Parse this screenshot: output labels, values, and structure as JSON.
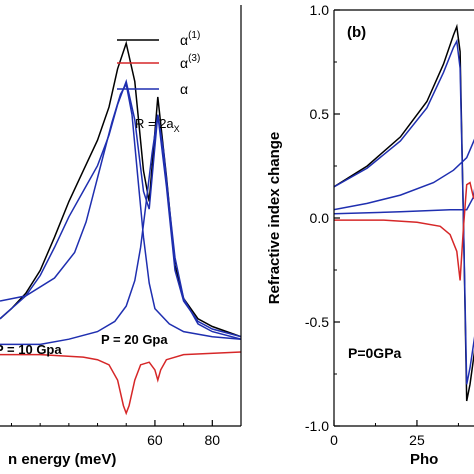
{
  "chart_data": [
    {
      "panel": "a",
      "type": "line",
      "xlabel": "n energy (meV)",
      "ylabel": "",
      "xlim": [
        6,
        90
      ],
      "ylim": [
        -0.3,
        1.35
      ],
      "xticks": [
        60,
        80
      ],
      "yticks": [],
      "grid": false,
      "legend_position": "top-right",
      "legend": [
        {
          "label": "α",
          "sup": "(1)",
          "color": "#000000"
        },
        {
          "label": "α",
          "sup": "(3)",
          "color": "#d62728"
        },
        {
          "label": "α",
          "sup": "",
          "color": "#1f2fb0"
        }
      ],
      "annotations": [
        {
          "text": "R = 2a",
          "sub": "X",
          "x": 72,
          "y": 0.92
        },
        {
          "text": "P = 20 Gpa",
          "x": 63,
          "y": -0.16
        },
        {
          "text": "P = 10 Gpa",
          "x": 5,
          "y": -0.26
        }
      ],
      "series": [
        {
          "color": "#000000",
          "values": [
            [
              6,
              0.12
            ],
            [
              10,
              0.16
            ],
            [
              15,
              0.22
            ],
            [
              20,
              0.31
            ],
            [
              25,
              0.44
            ],
            [
              30,
              0.58
            ],
            [
              35,
              0.7
            ],
            [
              40,
              0.82
            ],
            [
              44,
              0.95
            ],
            [
              47,
              1.1
            ],
            [
              50,
              1.2
            ],
            [
              53,
              1.05
            ],
            [
              56,
              0.7
            ],
            [
              58,
              0.58
            ],
            [
              61,
              0.99
            ],
            [
              64,
              0.68
            ],
            [
              67,
              0.33
            ],
            [
              70,
              0.2
            ],
            [
              75,
              0.12
            ],
            [
              80,
              0.09
            ],
            [
              90,
              0.05
            ]
          ]
        },
        {
          "color": "#1f2fb0",
          "values": [
            [
              6,
              0.12
            ],
            [
              10,
              0.16
            ],
            [
              15,
              0.21
            ],
            [
              20,
              0.29
            ],
            [
              25,
              0.4
            ],
            [
              30,
              0.52
            ],
            [
              35,
              0.62
            ],
            [
              40,
              0.72
            ],
            [
              44,
              0.84
            ],
            [
              47,
              0.96
            ],
            [
              50,
              1.05
            ],
            [
              53,
              0.9
            ],
            [
              56,
              0.62
            ],
            [
              58,
              0.55
            ],
            [
              61,
              0.92
            ],
            [
              64,
              0.64
            ],
            [
              67,
              0.31
            ],
            [
              70,
              0.19
            ],
            [
              75,
              0.11
            ],
            [
              80,
              0.08
            ],
            [
              90,
              0.05
            ]
          ]
        },
        {
          "color": "#1f2fb0",
          "values": [
            [
              6,
              0.19
            ],
            [
              15,
              0.21
            ],
            [
              25,
              0.28
            ],
            [
              32,
              0.38
            ],
            [
              36,
              0.5
            ],
            [
              39,
              0.63
            ],
            [
              42,
              0.76
            ],
            [
              45,
              0.89
            ],
            [
              48,
              1.0
            ],
            [
              50,
              1.04
            ],
            [
              52,
              0.92
            ],
            [
              54,
              0.68
            ],
            [
              56,
              0.44
            ],
            [
              58,
              0.26
            ],
            [
              60,
              0.16
            ],
            [
              65,
              0.1
            ],
            [
              70,
              0.07
            ],
            [
              80,
              0.05
            ],
            [
              90,
              0.04
            ]
          ]
        },
        {
          "color": "#1f2fb0",
          "values": [
            [
              6,
              0.02
            ],
            [
              20,
              0.02
            ],
            [
              30,
              0.04
            ],
            [
              40,
              0.07
            ],
            [
              46,
              0.11
            ],
            [
              50,
              0.17
            ],
            [
              53,
              0.27
            ],
            [
              55,
              0.4
            ],
            [
              57,
              0.58
            ],
            [
              59,
              0.77
            ],
            [
              61,
              0.92
            ],
            [
              63,
              0.78
            ],
            [
              65,
              0.56
            ],
            [
              67,
              0.36
            ],
            [
              70,
              0.2
            ],
            [
              75,
              0.1
            ],
            [
              80,
              0.07
            ],
            [
              90,
              0.04
            ]
          ]
        },
        {
          "color": "#d62728",
          "values": [
            [
              6,
              -0.02
            ],
            [
              20,
              -0.02
            ],
            [
              35,
              -0.03
            ],
            [
              40,
              -0.04
            ],
            [
              44,
              -0.06
            ],
            [
              47,
              -0.12
            ],
            [
              49,
              -0.22
            ],
            [
              50,
              -0.25
            ],
            [
              51,
              -0.22
            ],
            [
              53,
              -0.12
            ],
            [
              55,
              -0.06
            ],
            [
              58,
              -0.05
            ],
            [
              60,
              -0.08
            ],
            [
              61,
              -0.12
            ],
            [
              62,
              -0.08
            ],
            [
              64,
              -0.04
            ],
            [
              70,
              -0.02
            ],
            [
              90,
              -0.01
            ]
          ]
        }
      ]
    },
    {
      "panel": "b",
      "type": "line",
      "panel_label": "(b)",
      "xlabel": "Pho",
      "ylabel": "Refractive index change",
      "xlim": [
        0,
        44
      ],
      "ylim": [
        -1.0,
        1.0
      ],
      "xticks": [
        0,
        25
      ],
      "yticks": [
        -1.0,
        -0.5,
        0.0,
        0.5,
        1.0
      ],
      "yticklabels": [
        "-1.0",
        "-0.5",
        "0.0",
        "0.5",
        "1.0"
      ],
      "grid": false,
      "annotations": [
        {
          "text": "P=0GPa",
          "x": 3,
          "y": -0.68
        }
      ],
      "series": [
        {
          "color": "#000000",
          "values": [
            [
              0,
              0.15
            ],
            [
              10,
              0.25
            ],
            [
              20,
              0.39
            ],
            [
              28,
              0.56
            ],
            [
              33,
              0.74
            ],
            [
              36,
              0.88
            ],
            [
              37,
              0.92
            ],
            [
              38,
              0.8
            ],
            [
              39,
              0.0
            ],
            [
              40,
              -0.88
            ],
            [
              41,
              -0.8
            ],
            [
              44,
              -0.45
            ]
          ]
        },
        {
          "color": "#1f2fb0",
          "values": [
            [
              0,
              0.15
            ],
            [
              10,
              0.24
            ],
            [
              20,
              0.37
            ],
            [
              28,
              0.53
            ],
            [
              33,
              0.7
            ],
            [
              36,
              0.82
            ],
            [
              37,
              0.85
            ],
            [
              38,
              0.72
            ],
            [
              39,
              0.0
            ],
            [
              40,
              -0.8
            ],
            [
              41,
              -0.72
            ],
            [
              44,
              -0.4
            ]
          ]
        },
        {
          "color": "#1f2fb0",
          "values": [
            [
              0,
              0.04
            ],
            [
              10,
              0.07
            ],
            [
              20,
              0.11
            ],
            [
              30,
              0.17
            ],
            [
              36,
              0.23
            ],
            [
              40,
              0.29
            ],
            [
              44,
              0.44
            ]
          ]
        },
        {
          "color": "#1f2fb0",
          "values": [
            [
              0,
              0.02
            ],
            [
              20,
              0.03
            ],
            [
              35,
              0.04
            ],
            [
              40,
              0.04
            ],
            [
              42,
              0.1
            ],
            [
              44,
              0.3
            ]
          ]
        },
        {
          "color": "#d62728",
          "values": [
            [
              0,
              -0.01
            ],
            [
              15,
              -0.01
            ],
            [
              25,
              -0.02
            ],
            [
              32,
              -0.04
            ],
            [
              35,
              -0.08
            ],
            [
              37,
              -0.16
            ],
            [
              38,
              -0.3
            ],
            [
              39,
              -0.05
            ],
            [
              40,
              0.16
            ],
            [
              41,
              0.17
            ],
            [
              42,
              0.1
            ],
            [
              44,
              0.05
            ]
          ]
        }
      ]
    }
  ]
}
